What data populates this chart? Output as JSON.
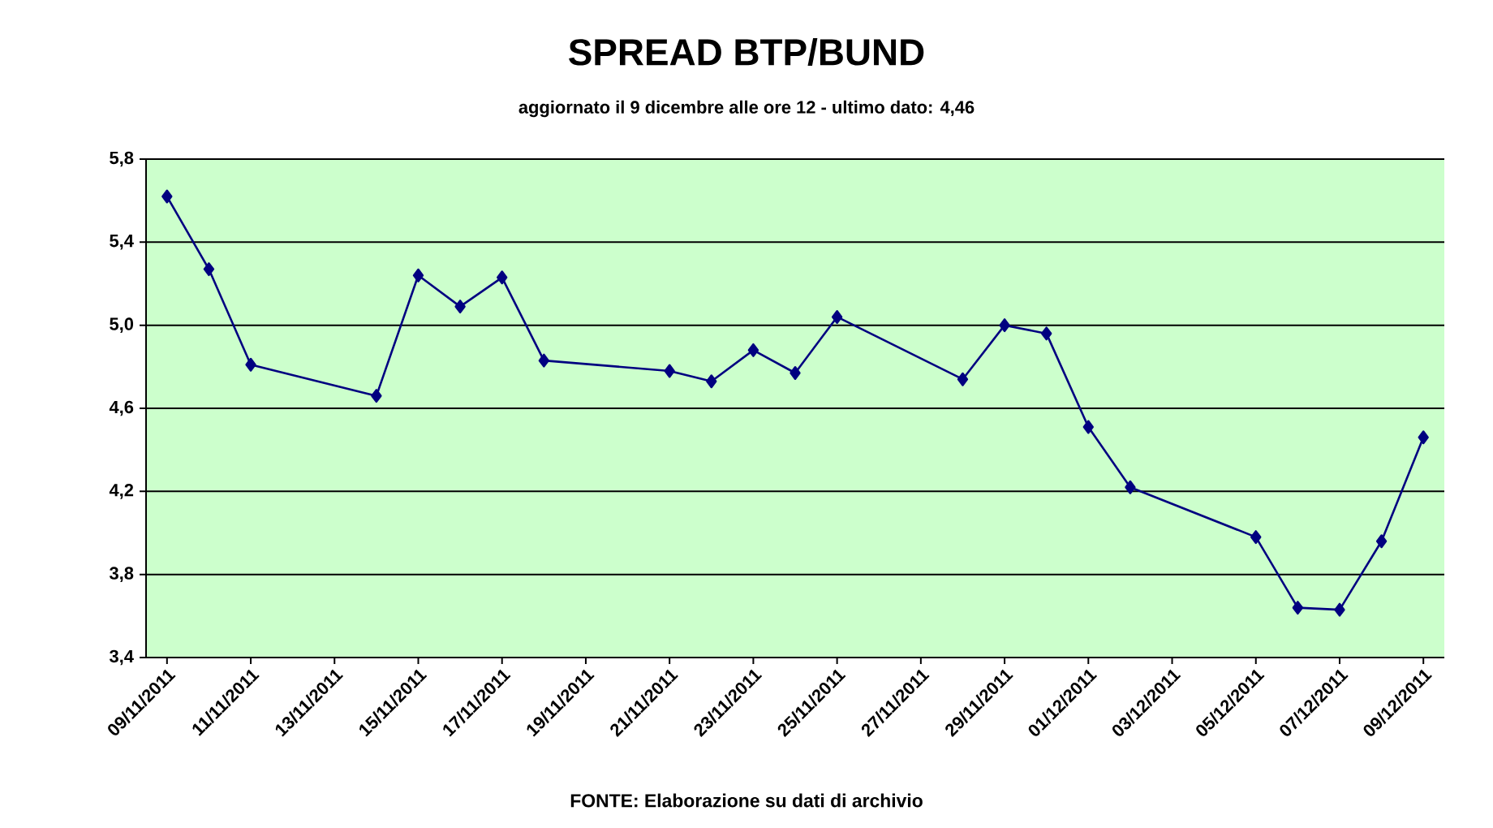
{
  "chart_data": {
    "type": "line",
    "title": "SPREAD BTP/BUND",
    "subtitle": "aggiornato il 9 dicembre alle ore 12 - ultimo dato: 4,46",
    "annotations": [
      "FONTE: Elaborazione su dati di archivio"
    ],
    "x": [
      "2011-11-09",
      "2011-11-10",
      "2011-11-11",
      "2011-11-14",
      "2011-11-15",
      "2011-11-16",
      "2011-11-17",
      "2011-11-18",
      "2011-11-21",
      "2011-11-22",
      "2011-11-23",
      "2011-11-24",
      "2011-11-25",
      "2011-11-28",
      "2011-11-29",
      "2011-11-30",
      "2011-12-01",
      "2011-12-02",
      "2011-12-05",
      "2011-12-06",
      "2011-12-07",
      "2011-12-08",
      "2011-12-09"
    ],
    "series": [
      {
        "color": "#000080",
        "values": [
          5.62,
          5.27,
          4.81,
          4.66,
          5.24,
          5.09,
          5.23,
          4.83,
          4.78,
          4.73,
          4.88,
          4.77,
          5.04,
          4.74,
          5.0,
          4.96,
          4.51,
          4.22,
          3.98,
          3.64,
          3.63,
          3.96,
          4.46
        ]
      }
    ],
    "xlim": [
      "2011-11-08T12:00",
      "2011-12-09T12:00"
    ],
    "xticks": [
      {
        "value": "2011-11-09",
        "label": "09/11/2011"
      },
      {
        "value": "2011-11-11",
        "label": "11/11/2011"
      },
      {
        "value": "2011-11-13",
        "label": "13/11/2011"
      },
      {
        "value": "2011-11-15",
        "label": "15/11/2011"
      },
      {
        "value": "2011-11-17",
        "label": "17/11/2011"
      },
      {
        "value": "2011-11-19",
        "label": "19/11/2011"
      },
      {
        "value": "2011-11-21",
        "label": "21/11/2011"
      },
      {
        "value": "2011-11-23",
        "label": "23/11/2011"
      },
      {
        "value": "2011-11-25",
        "label": "25/11/2011"
      },
      {
        "value": "2011-11-27",
        "label": "27/11/2011"
      },
      {
        "value": "2011-11-29",
        "label": "29/11/2011"
      },
      {
        "value": "2011-12-01",
        "label": "01/12/2011"
      },
      {
        "value": "2011-12-03",
        "label": "03/12/2011"
      },
      {
        "value": "2011-12-05",
        "label": "05/12/2011"
      },
      {
        "value": "2011-12-07",
        "label": "07/12/2011"
      },
      {
        "value": "2011-12-09",
        "label": "09/12/2011"
      }
    ],
    "ylim": [
      3.4,
      5.8
    ],
    "yticks": [
      {
        "value": 3.4,
        "label": "3,4"
      },
      {
        "value": 3.8,
        "label": "3,8"
      },
      {
        "value": 4.2,
        "label": "4,2"
      },
      {
        "value": 4.6,
        "label": "4,6"
      },
      {
        "value": 5.0,
        "label": "5,0"
      },
      {
        "value": 5.4,
        "label": "5,4"
      },
      {
        "value": 5.8,
        "label": "5,8"
      }
    ],
    "grid": "y",
    "marker": "diamond",
    "line_style": "solid"
  }
}
